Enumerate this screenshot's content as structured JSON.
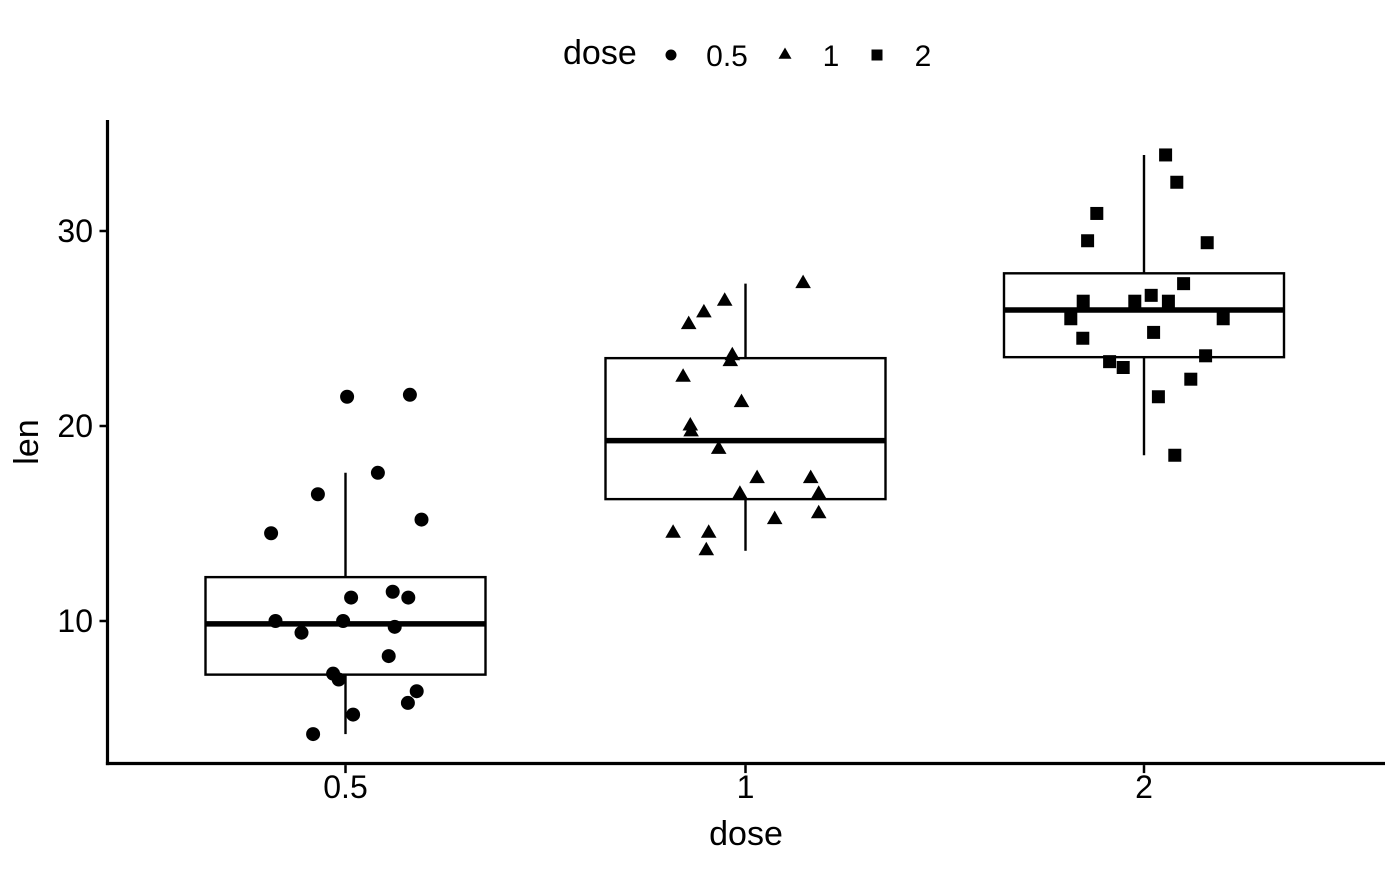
{
  "figure": {
    "background": "#ffffff",
    "ink": "#000000"
  },
  "legend": {
    "title": "dose",
    "position": "top",
    "items": [
      {
        "label": "0.5",
        "marker": "circle"
      },
      {
        "label": "1",
        "marker": "triangle"
      },
      {
        "label": "2",
        "marker": "square"
      }
    ]
  },
  "chart_data": {
    "type": "boxplot_with_jitter",
    "title": "",
    "xlabel": "dose",
    "ylabel": "len",
    "categories": [
      "0.5",
      "1",
      "2"
    ],
    "x_axis": {
      "title": "dose",
      "tick_labels": [
        "0.5",
        "1",
        "2"
      ]
    },
    "y_axis": {
      "title": "len",
      "ticks": [
        10,
        20,
        30
      ],
      "range": [
        2.7,
        35.7
      ]
    },
    "grid": false,
    "groups": [
      {
        "dose": "0.5",
        "marker": "circle",
        "box": {
          "whisker_low": 4.2,
          "q1": 7.25,
          "median": 9.85,
          "q3": 12.25,
          "whisker_high": 17.6
        },
        "points": [
          [
            0.004,
            21.5
          ],
          [
            0.161,
            21.6
          ],
          [
            0.081,
            17.6
          ],
          [
            -0.069,
            16.5
          ],
          [
            0.19,
            15.2
          ],
          [
            -0.186,
            14.5
          ],
          [
            0.014,
            11.2
          ],
          [
            0.118,
            11.5
          ],
          [
            0.157,
            11.2
          ],
          [
            -0.175,
            10.0
          ],
          [
            -0.006,
            10.0
          ],
          [
            0.123,
            9.7
          ],
          [
            -0.11,
            9.4
          ],
          [
            0.108,
            8.2
          ],
          [
            -0.031,
            7.3
          ],
          [
            -0.017,
            7.0
          ],
          [
            0.178,
            6.4
          ],
          [
            0.156,
            5.8
          ],
          [
            0.019,
            5.2
          ],
          [
            -0.081,
            4.2
          ]
        ]
      },
      {
        "dose": "1",
        "marker": "triangle",
        "box": {
          "whisker_low": 13.6,
          "q1": 16.25,
          "median": 19.25,
          "q3": 23.48,
          "whisker_high": 27.3
        },
        "points": [
          [
            0.144,
            27.3
          ],
          [
            -0.052,
            26.4
          ],
          [
            -0.104,
            25.8
          ],
          [
            -0.142,
            25.2
          ],
          [
            -0.033,
            23.6
          ],
          [
            -0.038,
            23.3
          ],
          [
            -0.156,
            22.5
          ],
          [
            -0.01,
            21.2
          ],
          [
            -0.138,
            20.0
          ],
          [
            -0.136,
            19.7
          ],
          [
            -0.067,
            18.8
          ],
          [
            0.029,
            17.3
          ],
          [
            0.163,
            17.3
          ],
          [
            -0.014,
            16.5
          ],
          [
            0.183,
            16.5
          ],
          [
            0.073,
            15.2
          ],
          [
            0.183,
            15.5
          ],
          [
            -0.181,
            14.5
          ],
          [
            -0.092,
            14.5
          ],
          [
            -0.098,
            13.6
          ]
        ]
      },
      {
        "dose": "2",
        "marker": "square",
        "box": {
          "whisker_low": 18.5,
          "q1": 23.53,
          "median": 25.95,
          "q3": 27.83,
          "whisker_high": 33.9
        },
        "points": [
          [
            0.054,
            33.9
          ],
          [
            0.082,
            32.5
          ],
          [
            -0.118,
            30.9
          ],
          [
            -0.141,
            29.5
          ],
          [
            0.158,
            29.4
          ],
          [
            0.099,
            27.3
          ],
          [
            0.018,
            26.7
          ],
          [
            -0.023,
            26.4
          ],
          [
            0.061,
            26.4
          ],
          [
            -0.152,
            26.4
          ],
          [
            -0.183,
            25.5
          ],
          [
            0.198,
            25.5
          ],
          [
            -0.153,
            24.5
          ],
          [
            0.024,
            24.8
          ],
          [
            0.154,
            23.6
          ],
          [
            -0.086,
            23.3
          ],
          [
            -0.052,
            23.0
          ],
          [
            0.117,
            22.4
          ],
          [
            0.036,
            21.5
          ],
          [
            0.077,
            18.5
          ]
        ]
      }
    ]
  }
}
